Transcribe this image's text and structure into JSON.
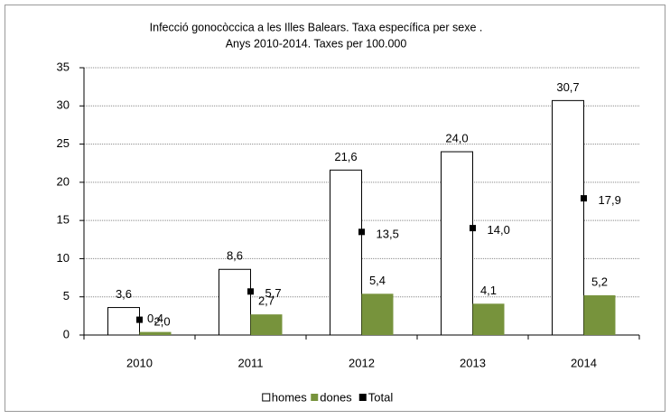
{
  "chart_data": {
    "type": "bar",
    "title": [
      "Infecció gonocòccica a les Illes Balears. Taxa específica per  sexe .",
      "Anys 2010-2014. Taxes per 100.000"
    ],
    "categories": [
      "2010",
      "2011",
      "2012",
      "2013",
      "2014"
    ],
    "series": [
      {
        "name": "homes",
        "color": "#ffffff",
        "values": [
          3.6,
          8.6,
          21.6,
          24.0,
          30.7
        ],
        "value_labels": [
          "3,6",
          "8,6",
          "21,6",
          "24,0",
          "30,7"
        ]
      },
      {
        "name": "dones",
        "color": "#77933c",
        "values": [
          0.4,
          2.7,
          5.4,
          4.1,
          5.2
        ],
        "value_labels": [
          "0,4",
          "2,7",
          "5,4",
          "4,1",
          "5,2"
        ]
      },
      {
        "name": "Total",
        "color": "#000000",
        "marker": "square",
        "values": [
          2.0,
          5.7,
          13.5,
          14.0,
          17.9
        ],
        "value_labels": [
          "2,0",
          "5,7",
          "13,5",
          "14,0",
          "17,9"
        ]
      }
    ],
    "ylim": [
      0,
      35
    ],
    "yticks": [
      0,
      5,
      10,
      15,
      20,
      25,
      30,
      35
    ],
    "grid": true,
    "legend": "bottom"
  }
}
